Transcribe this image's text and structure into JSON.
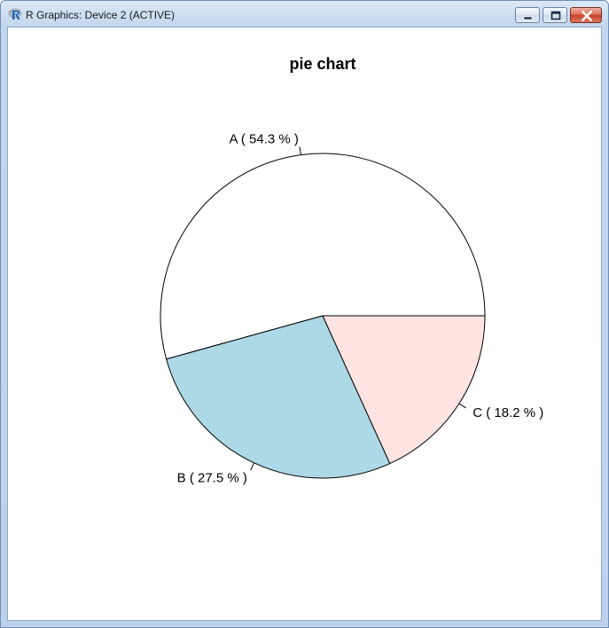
{
  "window": {
    "title": "R Graphics: Device 2 (ACTIVE)",
    "app_icon": "r-logo-icon",
    "controls": [
      "minimize-icon",
      "maximize-icon",
      "close-icon"
    ]
  },
  "chart_data": {
    "type": "pie",
    "title": "pie chart",
    "labels": [
      "A ( 54.3 % )",
      "B ( 27.5 % )",
      "C ( 18.2 % )"
    ],
    "values": [
      54.3,
      27.5,
      18.2
    ],
    "colors": [
      "#ffffff",
      "#add8e6",
      "#ffe4e1"
    ],
    "start_angle_deg": 0,
    "direction": "counterclockwise"
  }
}
